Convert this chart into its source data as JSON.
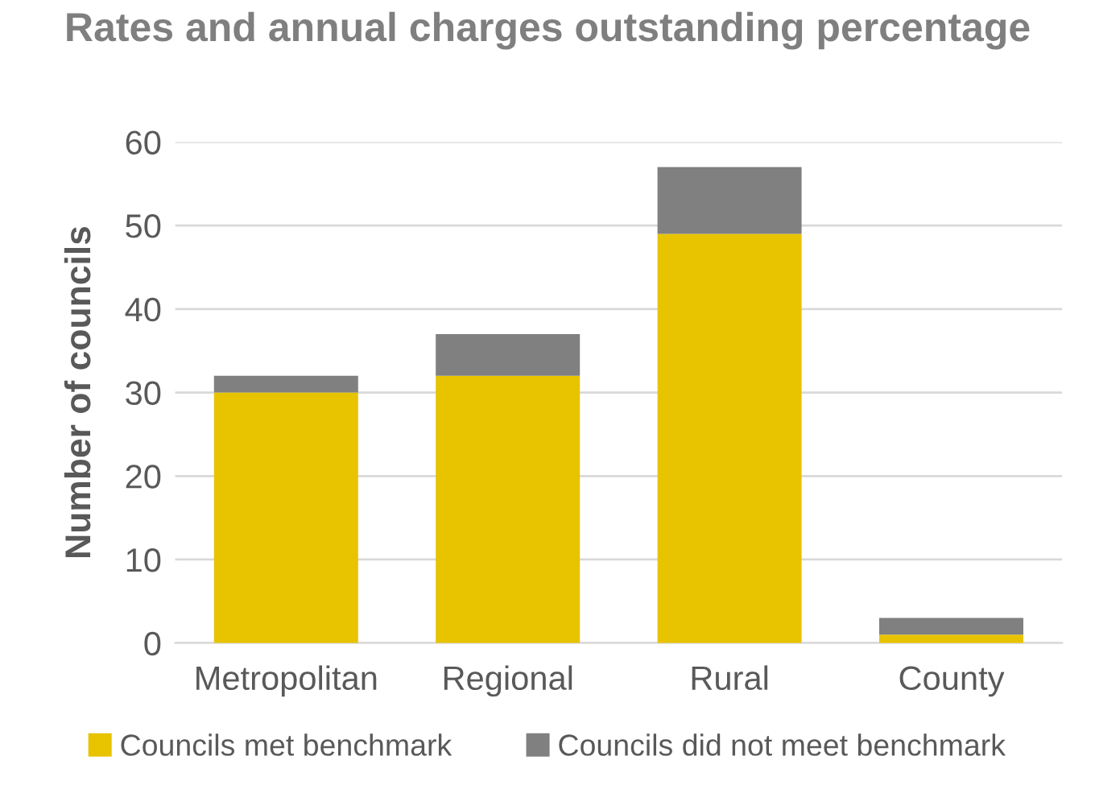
{
  "chart_data": {
    "type": "bar",
    "title": "Rates and annual charges outstanding percentage",
    "ylabel": "Number of councils",
    "categories": [
      "Metropolitan",
      "Regional",
      "Rural",
      "County"
    ],
    "stacked": true,
    "series": [
      {
        "name": "Councils met benchmark",
        "color": "#e8c300",
        "values": [
          30,
          32,
          49,
          1
        ]
      },
      {
        "name": "Councils did not meet benchmark",
        "color": "#808080",
        "values": [
          2,
          5,
          8,
          2
        ]
      }
    ],
    "ylim": [
      0,
      60
    ],
    "yticks": [
      0,
      10,
      20,
      30,
      40,
      50,
      60
    ],
    "grid": "y",
    "legend": "bottom"
  }
}
